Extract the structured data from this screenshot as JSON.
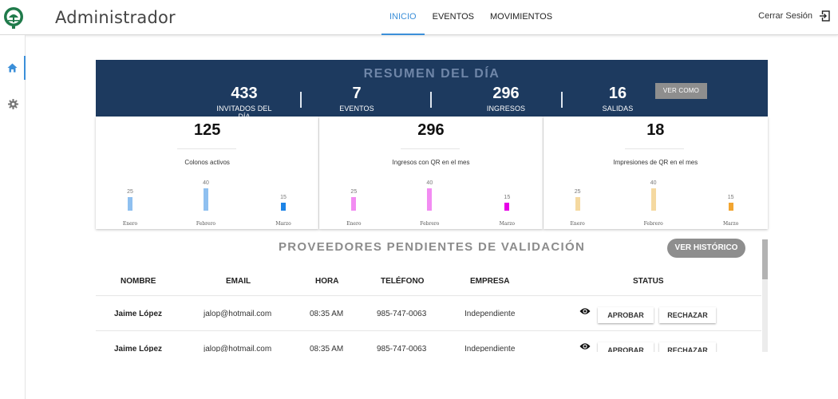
{
  "header": {
    "title": "Administrador",
    "nav": [
      "INICIO",
      "EVENTOS",
      "MOVIMIENTOS"
    ],
    "logout_label": "Cerrar Sesión"
  },
  "sidebar": {
    "items": [
      "home-icon",
      "gear-icon"
    ]
  },
  "summary": {
    "title": "RESUMEN DEL DÍA",
    "stats": [
      {
        "value": "433",
        "label": "INVITADOS DEL DÍA"
      },
      {
        "value": "7",
        "label": "EVENTOS"
      },
      {
        "value": "296",
        "label": "INGRESOS"
      },
      {
        "value": "16",
        "label": "SALIDAS"
      }
    ],
    "view_as_label": "VER COMO"
  },
  "cards": [
    {
      "value": "125",
      "label": "Colonos activos"
    },
    {
      "value": "296",
      "label": "Ingresos con QR en el mes"
    },
    {
      "value": "18",
      "label": "Impresiones de QR en el mes"
    }
  ],
  "chart_data": [
    {
      "type": "bar",
      "categories": [
        "Enero",
        "Febrero",
        "Marzo"
      ],
      "values": [
        25,
        40,
        15
      ],
      "colors": [
        "#8fc0f0",
        "#8fc0f0",
        "#1e84e6"
      ]
    },
    {
      "type": "bar",
      "categories": [
        "Enero",
        "Febrero",
        "Marzo"
      ],
      "values": [
        25,
        40,
        15
      ],
      "colors": [
        "#f28cf2",
        "#f28cf2",
        "#e600e6"
      ]
    },
    {
      "type": "bar",
      "categories": [
        "Enero",
        "Febrero",
        "Marzo"
      ],
      "values": [
        25,
        40,
        15
      ],
      "colors": [
        "#f5d9a0",
        "#f5d9a0",
        "#f2a531"
      ]
    }
  ],
  "providers": {
    "title": "PROVEEDORES PENDIENTES DE VALIDACIÓN",
    "history_label": "VER HISTÓRICO",
    "columns": [
      "NOMBRE",
      "EMAIL",
      "HORA",
      "TELÉFONO",
      "EMPRESA",
      "STATUS"
    ],
    "approve_label": "APROBAR",
    "reject_label": "RECHAZAR",
    "rows": [
      {
        "name": "Jaime López",
        "email": "jalop@hotmail.com",
        "time": "08:35 AM",
        "phone": "985-747-0063",
        "company": "Independiente"
      },
      {
        "name": "Jaime López",
        "email": "jalop@hotmail.com",
        "time": "08:35 AM",
        "phone": "985-747-0063",
        "company": "Independiente"
      }
    ]
  },
  "colors": {
    "accent": "#3b8fd9",
    "banner": "#1d3a5f",
    "banner_title": "#6f86a8",
    "button_gray": "#8e8e8e"
  }
}
